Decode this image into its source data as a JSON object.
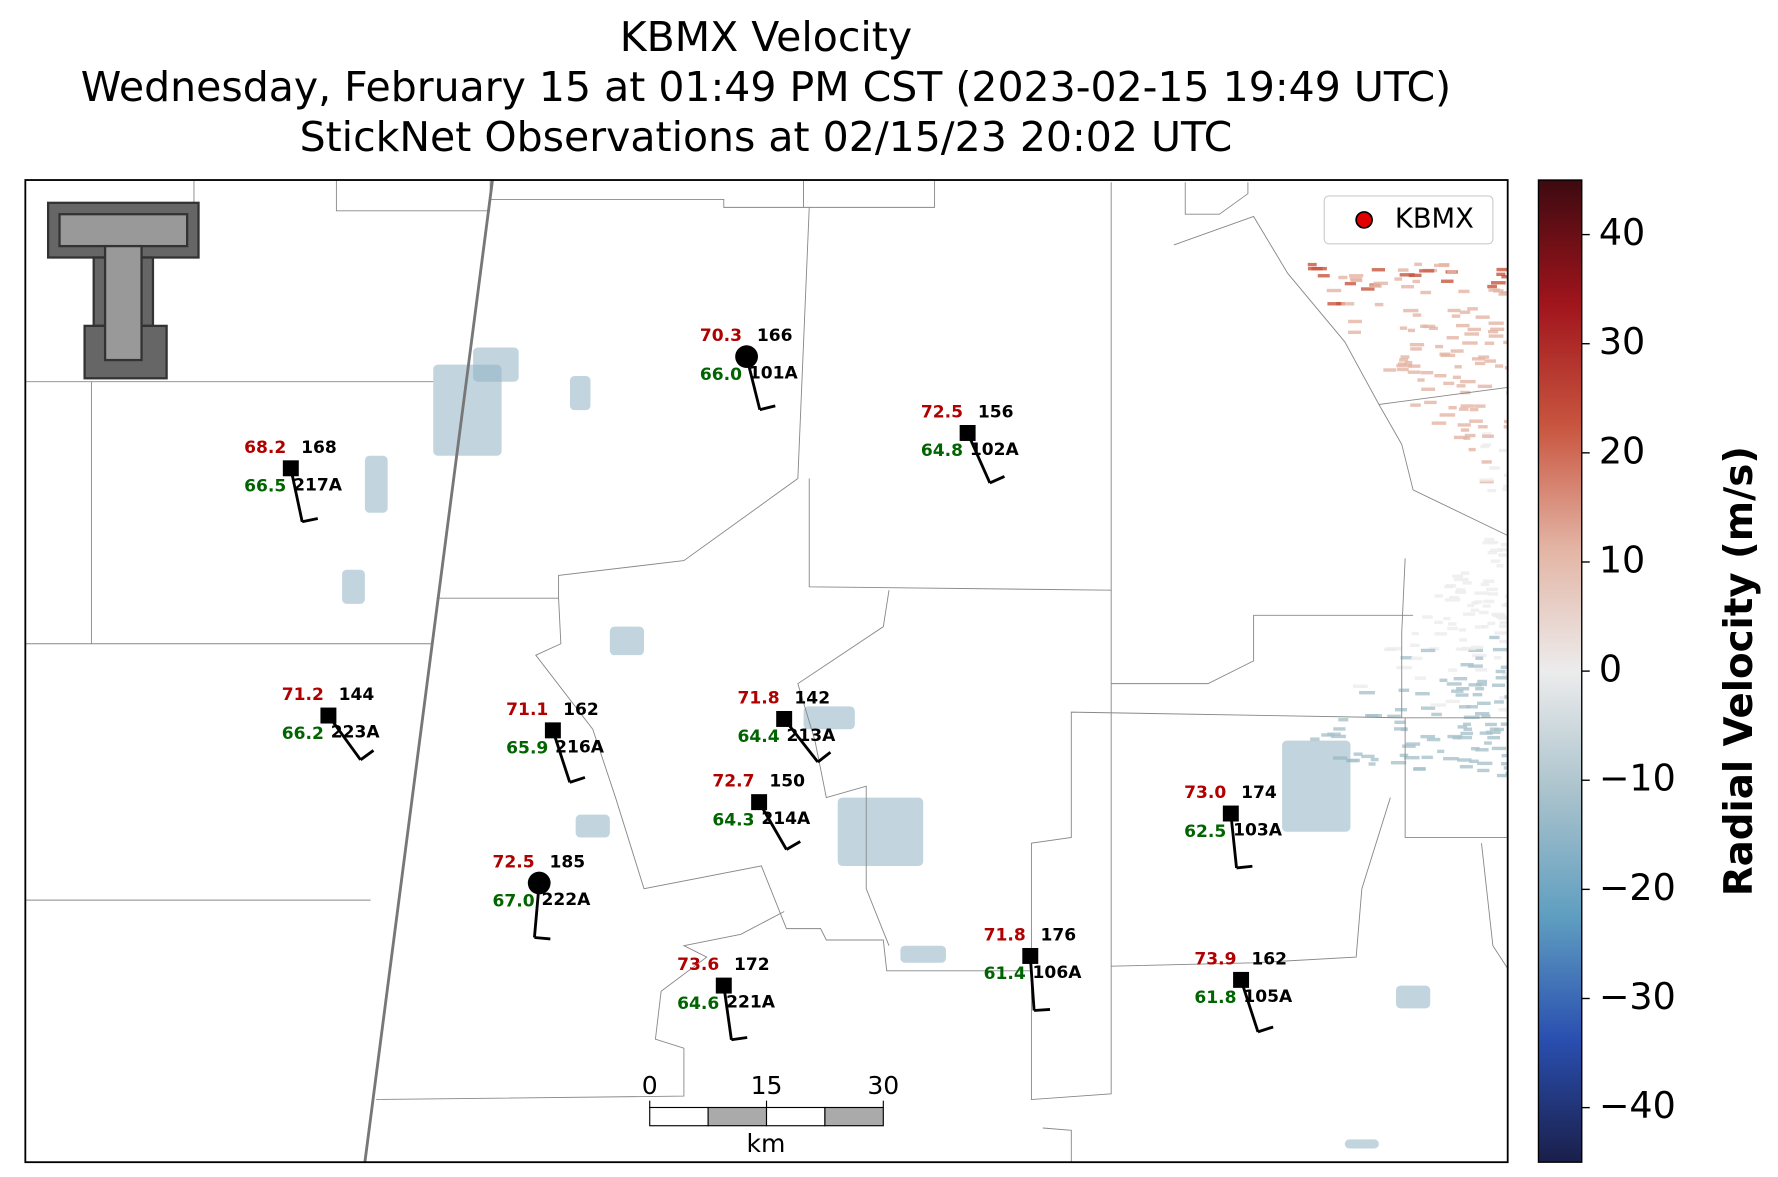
{
  "title": [
    "KBMX Velocity",
    "Wednesday, February 15 at 01:49 PM CST (2023-02-15 19:49 UTC)",
    "StickNet Observations at 02/15/23 20:02 UTC"
  ],
  "legend": {
    "label": "KBMX",
    "color": "#e00000"
  },
  "colorbar": {
    "label": "Radial Velocity (m/s)",
    "lim": [
      -45,
      45
    ],
    "ticks": [
      {
        "value": -40,
        "label": "−40"
      },
      {
        "value": -30,
        "label": "−30"
      },
      {
        "value": -20,
        "label": "−20"
      },
      {
        "value": -10,
        "label": "−10"
      },
      0,
      10,
      20,
      30,
      40
    ],
    "colors": [
      "#1a1f4a",
      "#2a4fb0",
      "#5f9ec0",
      "#a9c2cc",
      "#ececec",
      "#e3b4a4",
      "#c8553f",
      "#a0141c",
      "#3d0a10"
    ]
  },
  "scale_bar": {
    "ticks": [
      0,
      15,
      30
    ],
    "unit": "km"
  },
  "stations": [
    {
      "id": "101A",
      "temperature": 70.3,
      "dewpoint": {
        "value": 66,
        "label": "66.0"
      },
      "wind_direction": 166,
      "marker": "circle"
    },
    {
      "id": "217A",
      "temperature": 68.2,
      "dewpoint": 66.5,
      "wind_direction": 168,
      "marker": "square"
    },
    {
      "id": "102A",
      "temperature": 72.5,
      "dewpoint": 64.8,
      "wind_direction": 156,
      "marker": "square"
    },
    {
      "id": "223A",
      "temperature": 71.2,
      "dewpoint": 66.2,
      "wind_direction": 144,
      "marker": "square"
    },
    {
      "id": "216A",
      "temperature": 71.1,
      "dewpoint": 65.9,
      "wind_direction": 162,
      "marker": "square"
    },
    {
      "id": "213A",
      "temperature": 71.8,
      "dewpoint": 64.4,
      "wind_direction": 142,
      "marker": "square"
    },
    {
      "id": "214A",
      "temperature": 72.7,
      "dewpoint": 64.3,
      "wind_direction": 150,
      "marker": "square"
    },
    {
      "id": "222A",
      "temperature": 72.5,
      "dewpoint": {
        "value": 67,
        "label": "67.0"
      },
      "wind_direction": 185,
      "marker": "circle"
    },
    {
      "id": "221A",
      "temperature": 73.6,
      "dewpoint": 64.6,
      "wind_direction": 172,
      "marker": "square"
    },
    {
      "id": "106A",
      "temperature": 71.8,
      "dewpoint": 61.4,
      "wind_direction": 176,
      "marker": "square"
    },
    {
      "id": "103A",
      "temperature": {
        "value": 73,
        "label": "73.0"
      },
      "dewpoint": 62.5,
      "wind_direction": 174,
      "marker": "square"
    },
    {
      "id": "105A",
      "temperature": 73.9,
      "dewpoint": 61.8,
      "wind_direction": 162,
      "marker": "square"
    }
  ]
}
